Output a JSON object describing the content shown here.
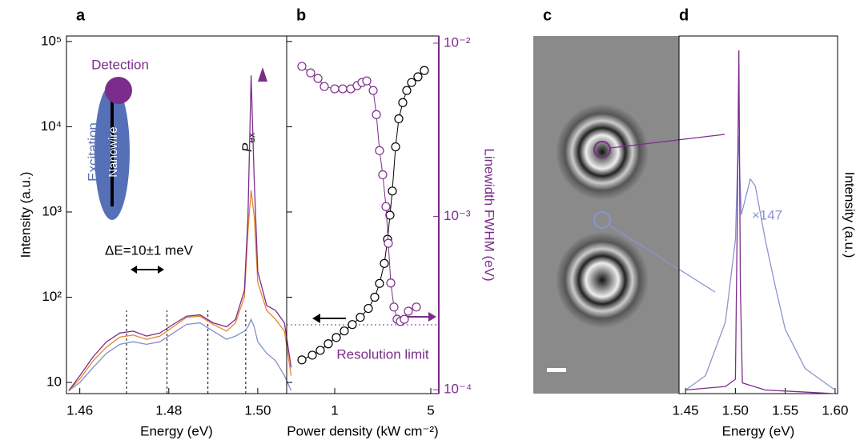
{
  "chart_data": [
    {
      "type": "line",
      "title": "a",
      "x_label": "Energy (eV)",
      "y_label": "Intensity (a.u.)",
      "y_log": true,
      "xlim": [
        1.457,
        1.5065
      ],
      "xticks": [
        1.46,
        1.48,
        {
          "value": 1.5,
          "label": "1.50"
        }
      ],
      "ylim": [
        7.4,
        116000
      ],
      "yticks": [
        10,
        {
          "value": 100,
          "label": "10²"
        },
        {
          "value": 1000,
          "label": "10³"
        },
        {
          "value": 10000,
          "label": "10⁴"
        },
        {
          "value": 100000,
          "label": "10⁵"
        }
      ],
      "markers": [
        1.4705,
        1.4796,
        1.4888,
        1.4973
      ],
      "detection_label": "Detection",
      "excitation_label": "Excitation",
      "nanowire_label": "Nanowire",
      "power_symbol": "P",
      "power_subscript": "ex",
      "delta_e_label": "ΔE=10±1 meV",
      "series": [
        {
          "color": "#7f8fcc",
          "x": [
            1.4575,
            1.46,
            1.463,
            1.466,
            1.469,
            1.472,
            1.475,
            1.478,
            1.481,
            1.484,
            1.487,
            1.49,
            1.493,
            1.495,
            1.497,
            1.4978,
            1.4985,
            1.4992,
            1.5,
            1.502,
            1.504,
            1.506,
            1.5075
          ],
          "values": [
            8,
            10,
            15,
            22,
            28,
            30,
            28,
            30,
            38,
            48,
            50,
            40,
            32,
            35,
            40,
            45,
            55,
            45,
            30,
            22,
            18,
            12,
            8
          ]
        },
        {
          "color": "#e8842a",
          "x": [
            1.4575,
            1.46,
            1.463,
            1.466,
            1.469,
            1.472,
            1.475,
            1.478,
            1.481,
            1.484,
            1.487,
            1.49,
            1.493,
            1.495,
            1.497,
            1.4978,
            1.4985,
            1.4992,
            1.5,
            1.502,
            1.504,
            1.506,
            1.5075
          ],
          "values": [
            8,
            11,
            18,
            26,
            34,
            36,
            32,
            35,
            45,
            58,
            60,
            48,
            40,
            50,
            100,
            600,
            1800,
            900,
            150,
            70,
            55,
            40,
            12
          ]
        },
        {
          "color": "#7b2d8b",
          "x": [
            1.4575,
            1.46,
            1.463,
            1.466,
            1.469,
            1.472,
            1.475,
            1.478,
            1.481,
            1.484,
            1.487,
            1.49,
            1.493,
            1.495,
            1.497,
            1.4978,
            1.4985,
            1.4992,
            1.5,
            1.502,
            1.504,
            1.506,
            1.5075
          ],
          "values": [
            8,
            12,
            20,
            30,
            38,
            40,
            35,
            38,
            48,
            60,
            62,
            50,
            45,
            55,
            120,
            900,
            40000,
            2500,
            200,
            80,
            70,
            50,
            15
          ]
        }
      ]
    },
    {
      "type": "scatter",
      "title": "b",
      "x_label": "Power density (kW cm⁻²)",
      "y2_label": "Linewidth FWHM (eV)",
      "x_log": true,
      "y_log": true,
      "y2_log": true,
      "xlim": [
        0.447,
        5.72
      ],
      "xticks": [
        1,
        5
      ],
      "ylim": [
        7.4,
        116000
      ],
      "y2lim": [
        9.5e-05,
        0.011
      ],
      "y2ticks": [
        {
          "value": 0.0001,
          "label": "10⁻⁴"
        },
        {
          "value": 0.001,
          "label": "10⁻³"
        },
        {
          "value": 0.01,
          "label": "10⁻²"
        }
      ],
      "resolution_limit": 0.000237,
      "resolution_label": "Resolution limit",
      "series": [
        {
          "color": "#000000",
          "x": [
            0.577,
            0.687,
            0.785,
            0.898,
            1.027,
            1.174,
            1.343,
            1.535,
            1.757,
            1.955,
            2.118,
            2.296,
            2.423,
            2.523,
            2.625,
            2.773,
            2.924,
            3.126,
            3.343,
            3.623,
            4.033,
            4.487
          ],
          "values": [
            18.4,
            20.9,
            23.8,
            28.4,
            33.7,
            40.2,
            47.8,
            58.1,
            73.8,
            100,
            145,
            249,
            478,
            917,
            1760,
            5810,
            12400,
            19200,
            26600,
            33000,
            38500,
            45700
          ]
        },
        {
          "color": "#7b2d8b",
          "axis": "y2",
          "x": [
            0.577,
            0.668,
            0.755,
            0.84,
            1.0,
            1.143,
            1.307,
            1.456,
            1.578,
            1.71,
            1.905,
            2.009,
            2.118,
            2.235,
            2.36,
            2.455,
            2.557,
            2.698,
            2.845,
            3.003,
            3.212,
            3.435,
            3.927
          ],
          "values": [
            0.00735,
            0.00674,
            0.00626,
            0.00562,
            0.00545,
            0.00545,
            0.00545,
            0.00569,
            0.00593,
            0.00606,
            0.00533,
            0.00387,
            0.0024,
            0.00174,
            0.00114,
            0.0007,
            0.000413,
            0.0003,
            0.000255,
            0.000248,
            0.000255,
            0.000284,
            0.0003
          ]
        }
      ]
    },
    {
      "type": "image",
      "title": "c"
    },
    {
      "type": "line",
      "title": "d",
      "x_label": "Energy (eV)",
      "y_label": "Intensity (a.u.)",
      "scale_label": "×147",
      "xlim": [
        1.4435,
        1.6025
      ],
      "xticks": [
        1.45,
        {
          "value": 1.5,
          "label": "1.50"
        },
        1.55,
        {
          "value": 1.6,
          "label": "1.60"
        }
      ],
      "ylim": [
        0,
        1
      ],
      "series": [
        {
          "color": "#8a95d0",
          "x": [
            1.45,
            1.47,
            1.49,
            1.5,
            1.503,
            1.506,
            1.515,
            1.52,
            1.53,
            1.54,
            1.55,
            1.57,
            1.59,
            1.6
          ],
          "values": [
            0.01,
            0.05,
            0.2,
            0.43,
            0.72,
            0.5,
            0.6,
            0.58,
            0.43,
            0.3,
            0.18,
            0.07,
            0.03,
            0.01
          ]
        },
        {
          "color": "#7b2d8b",
          "x": [
            1.45,
            1.49,
            1.5,
            1.502,
            1.5035,
            1.505,
            1.507,
            1.53,
            1.6
          ],
          "values": [
            0.01,
            0.02,
            0.04,
            0.5,
            0.96,
            0.3,
            0.03,
            0.01,
            0.0
          ]
        }
      ]
    }
  ]
}
